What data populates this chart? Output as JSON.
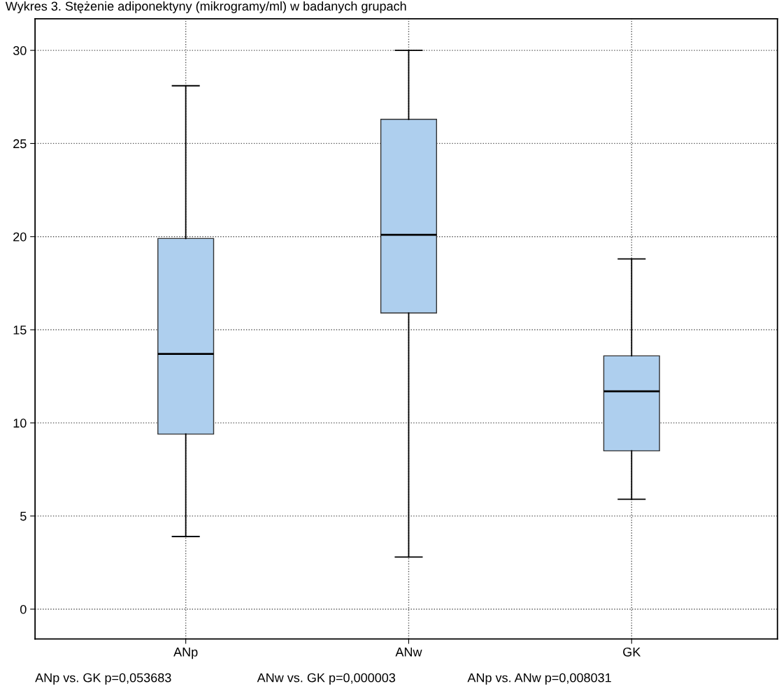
{
  "chart_data": {
    "type": "box",
    "title": "Wykres 3. Stężenie adiponektyny (mikrogramy/ml) w badanych grupach",
    "categories": [
      "ANp",
      "ANw",
      "GK"
    ],
    "boxes": [
      {
        "low": 3.9,
        "q1": 9.4,
        "median": 13.7,
        "q3": 19.9,
        "high": 28.1
      },
      {
        "low": 2.8,
        "q1": 15.9,
        "median": 20.1,
        "q3": 26.3,
        "high": 30.0
      },
      {
        "low": 5.9,
        "q1": 8.5,
        "median": 11.7,
        "q3": 13.6,
        "high": 18.8
      }
    ],
    "color": "#aecfee",
    "ylim": [
      -1.6,
      31.7
    ],
    "yticks": [
      0,
      5,
      10,
      15,
      20,
      25,
      30
    ],
    "grid": true,
    "annotations": [
      "ANp vs. GK p=0,053683",
      "ANw vs. GK p=0,000003",
      "ANp vs. ANw p=0,008031"
    ]
  }
}
